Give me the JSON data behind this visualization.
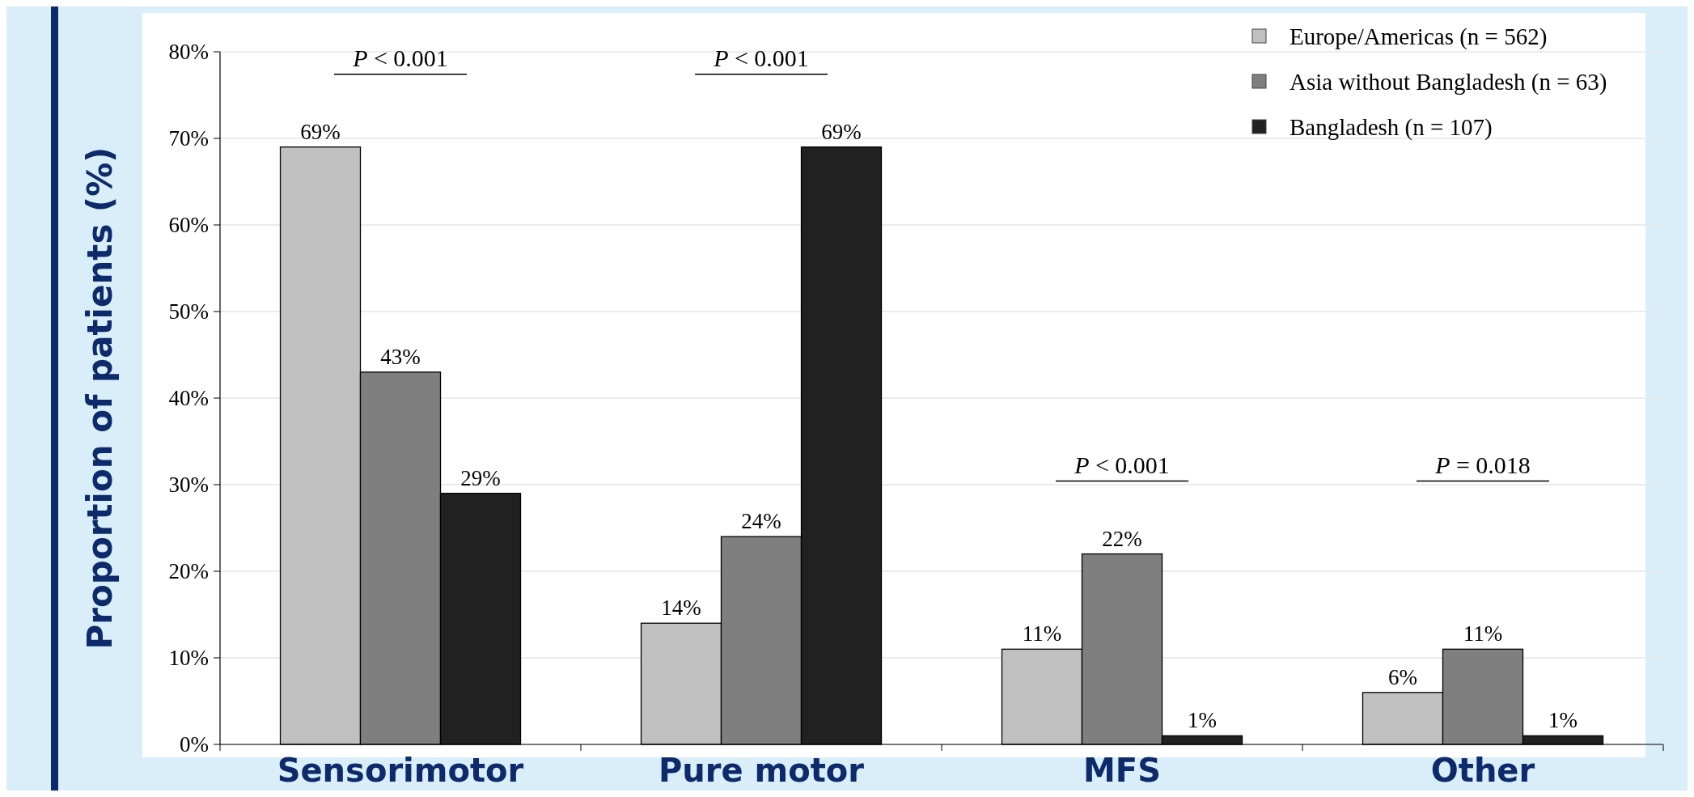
{
  "chart_data": {
    "type": "bar",
    "ylabel": "Proportion of patients (%)",
    "categories": [
      "Sensorimotor",
      "Pure motor",
      "MFS",
      "Other"
    ],
    "series": [
      {
        "name": "Europe/Americas (n = 562)",
        "color": "#c0c0c0",
        "values": [
          69,
          14,
          11,
          6
        ],
        "value_labels": [
          "69%",
          "14%",
          "11%",
          "6%"
        ]
      },
      {
        "name": "Asia without Bangladesh (n = 63)",
        "color": "#7f7f7f",
        "values": [
          43,
          24,
          22,
          11
        ],
        "value_labels": [
          "43%",
          "24%",
          "22%",
          "11%"
        ]
      },
      {
        "name": "Bangladesh (n = 107)",
        "color": "#212121",
        "values": [
          29,
          69,
          1,
          1
        ],
        "value_labels": [
          "29%",
          "69%",
          "1%",
          "1%"
        ]
      }
    ],
    "ylim": [
      0,
      80
    ],
    "yticks": [
      {
        "value": 0,
        "label": "0%"
      },
      {
        "value": 10,
        "label": "10%"
      },
      {
        "value": 20,
        "label": "20%"
      },
      {
        "value": 30,
        "label": "30%"
      },
      {
        "value": 40,
        "label": "40%"
      },
      {
        "value": 50,
        "label": "50%"
      },
      {
        "value": 60,
        "label": "60%"
      },
      {
        "value": 70,
        "label": "70%"
      },
      {
        "value": 80,
        "label": "80%"
      }
    ],
    "grid": "y",
    "legend": "top right",
    "annotations": [
      "P < 0.001",
      "P < 0.001",
      "P < 0.001",
      "P = 0.018"
    ]
  }
}
